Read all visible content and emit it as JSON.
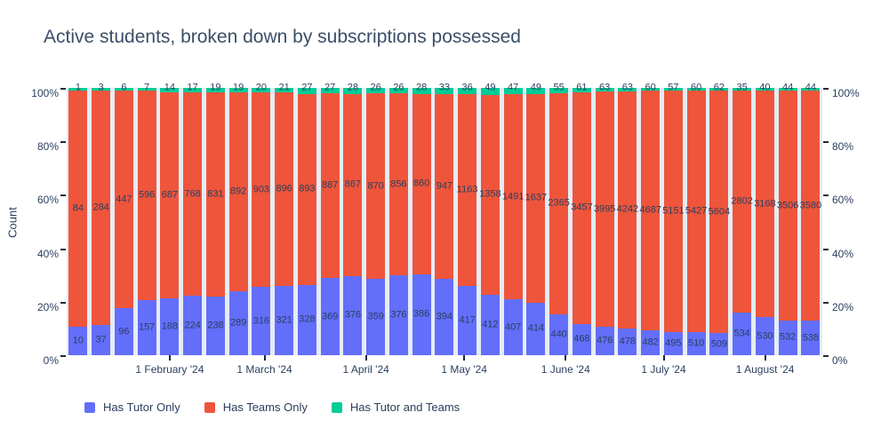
{
  "chart_data": {
    "type": "bar",
    "mode": "stacked",
    "normalized": "percent",
    "title": "Active students, broken down by subscriptions possessed",
    "ylabel": "Count",
    "y_ticks": [
      "0%",
      "20%",
      "40%",
      "60%",
      "80%",
      "100%"
    ],
    "x_ticks": [
      {
        "label": "1 February '24",
        "pos": 4.0
      },
      {
        "label": "1 March '24",
        "pos": 8.14
      },
      {
        "label": "1 April '24",
        "pos": 12.57
      },
      {
        "label": "1 May '24",
        "pos": 16.86
      },
      {
        "label": "1 June '24",
        "pos": 21.29
      },
      {
        "label": "1 July '24",
        "pos": 25.57
      },
      {
        "label": "1 August '24",
        "pos": 30.0
      }
    ],
    "bar_count": 33,
    "series": [
      {
        "name": "Has Tutor Only",
        "color": "#636EFA",
        "values": [
          10,
          37,
          96,
          157,
          188,
          224,
          238,
          289,
          316,
          321,
          328,
          369,
          376,
          359,
          376,
          386,
          394,
          417,
          412,
          407,
          414,
          440,
          468,
          476,
          478,
          482,
          495,
          510,
          509,
          534,
          530,
          532,
          538
        ]
      },
      {
        "name": "Has Teams Only",
        "color": "#EF553B",
        "values": [
          84,
          284,
          447,
          596,
          687,
          768,
          831,
          892,
          903,
          896,
          893,
          887,
          867,
          870,
          856,
          860,
          947,
          1163,
          1358,
          1491,
          1637,
          2365,
          3457,
          3995,
          4242,
          4687,
          5151,
          5427,
          5604,
          2802,
          3168,
          3506,
          3580
        ]
      },
      {
        "name": "Has Tutor and Teams",
        "color": "#00CC96",
        "values": [
          1,
          3,
          6,
          7,
          14,
          17,
          19,
          19,
          20,
          21,
          27,
          27,
          28,
          26,
          26,
          28,
          33,
          36,
          49,
          47,
          49,
          55,
          61,
          63,
          63,
          60,
          57,
          60,
          62,
          35,
          40,
          44,
          44
        ]
      }
    ],
    "legend_position": "bottom-left",
    "plot_bg": "#E5ECF6",
    "text_color": "#2a3f5f",
    "ylim_percent": [
      0,
      100
    ]
  }
}
